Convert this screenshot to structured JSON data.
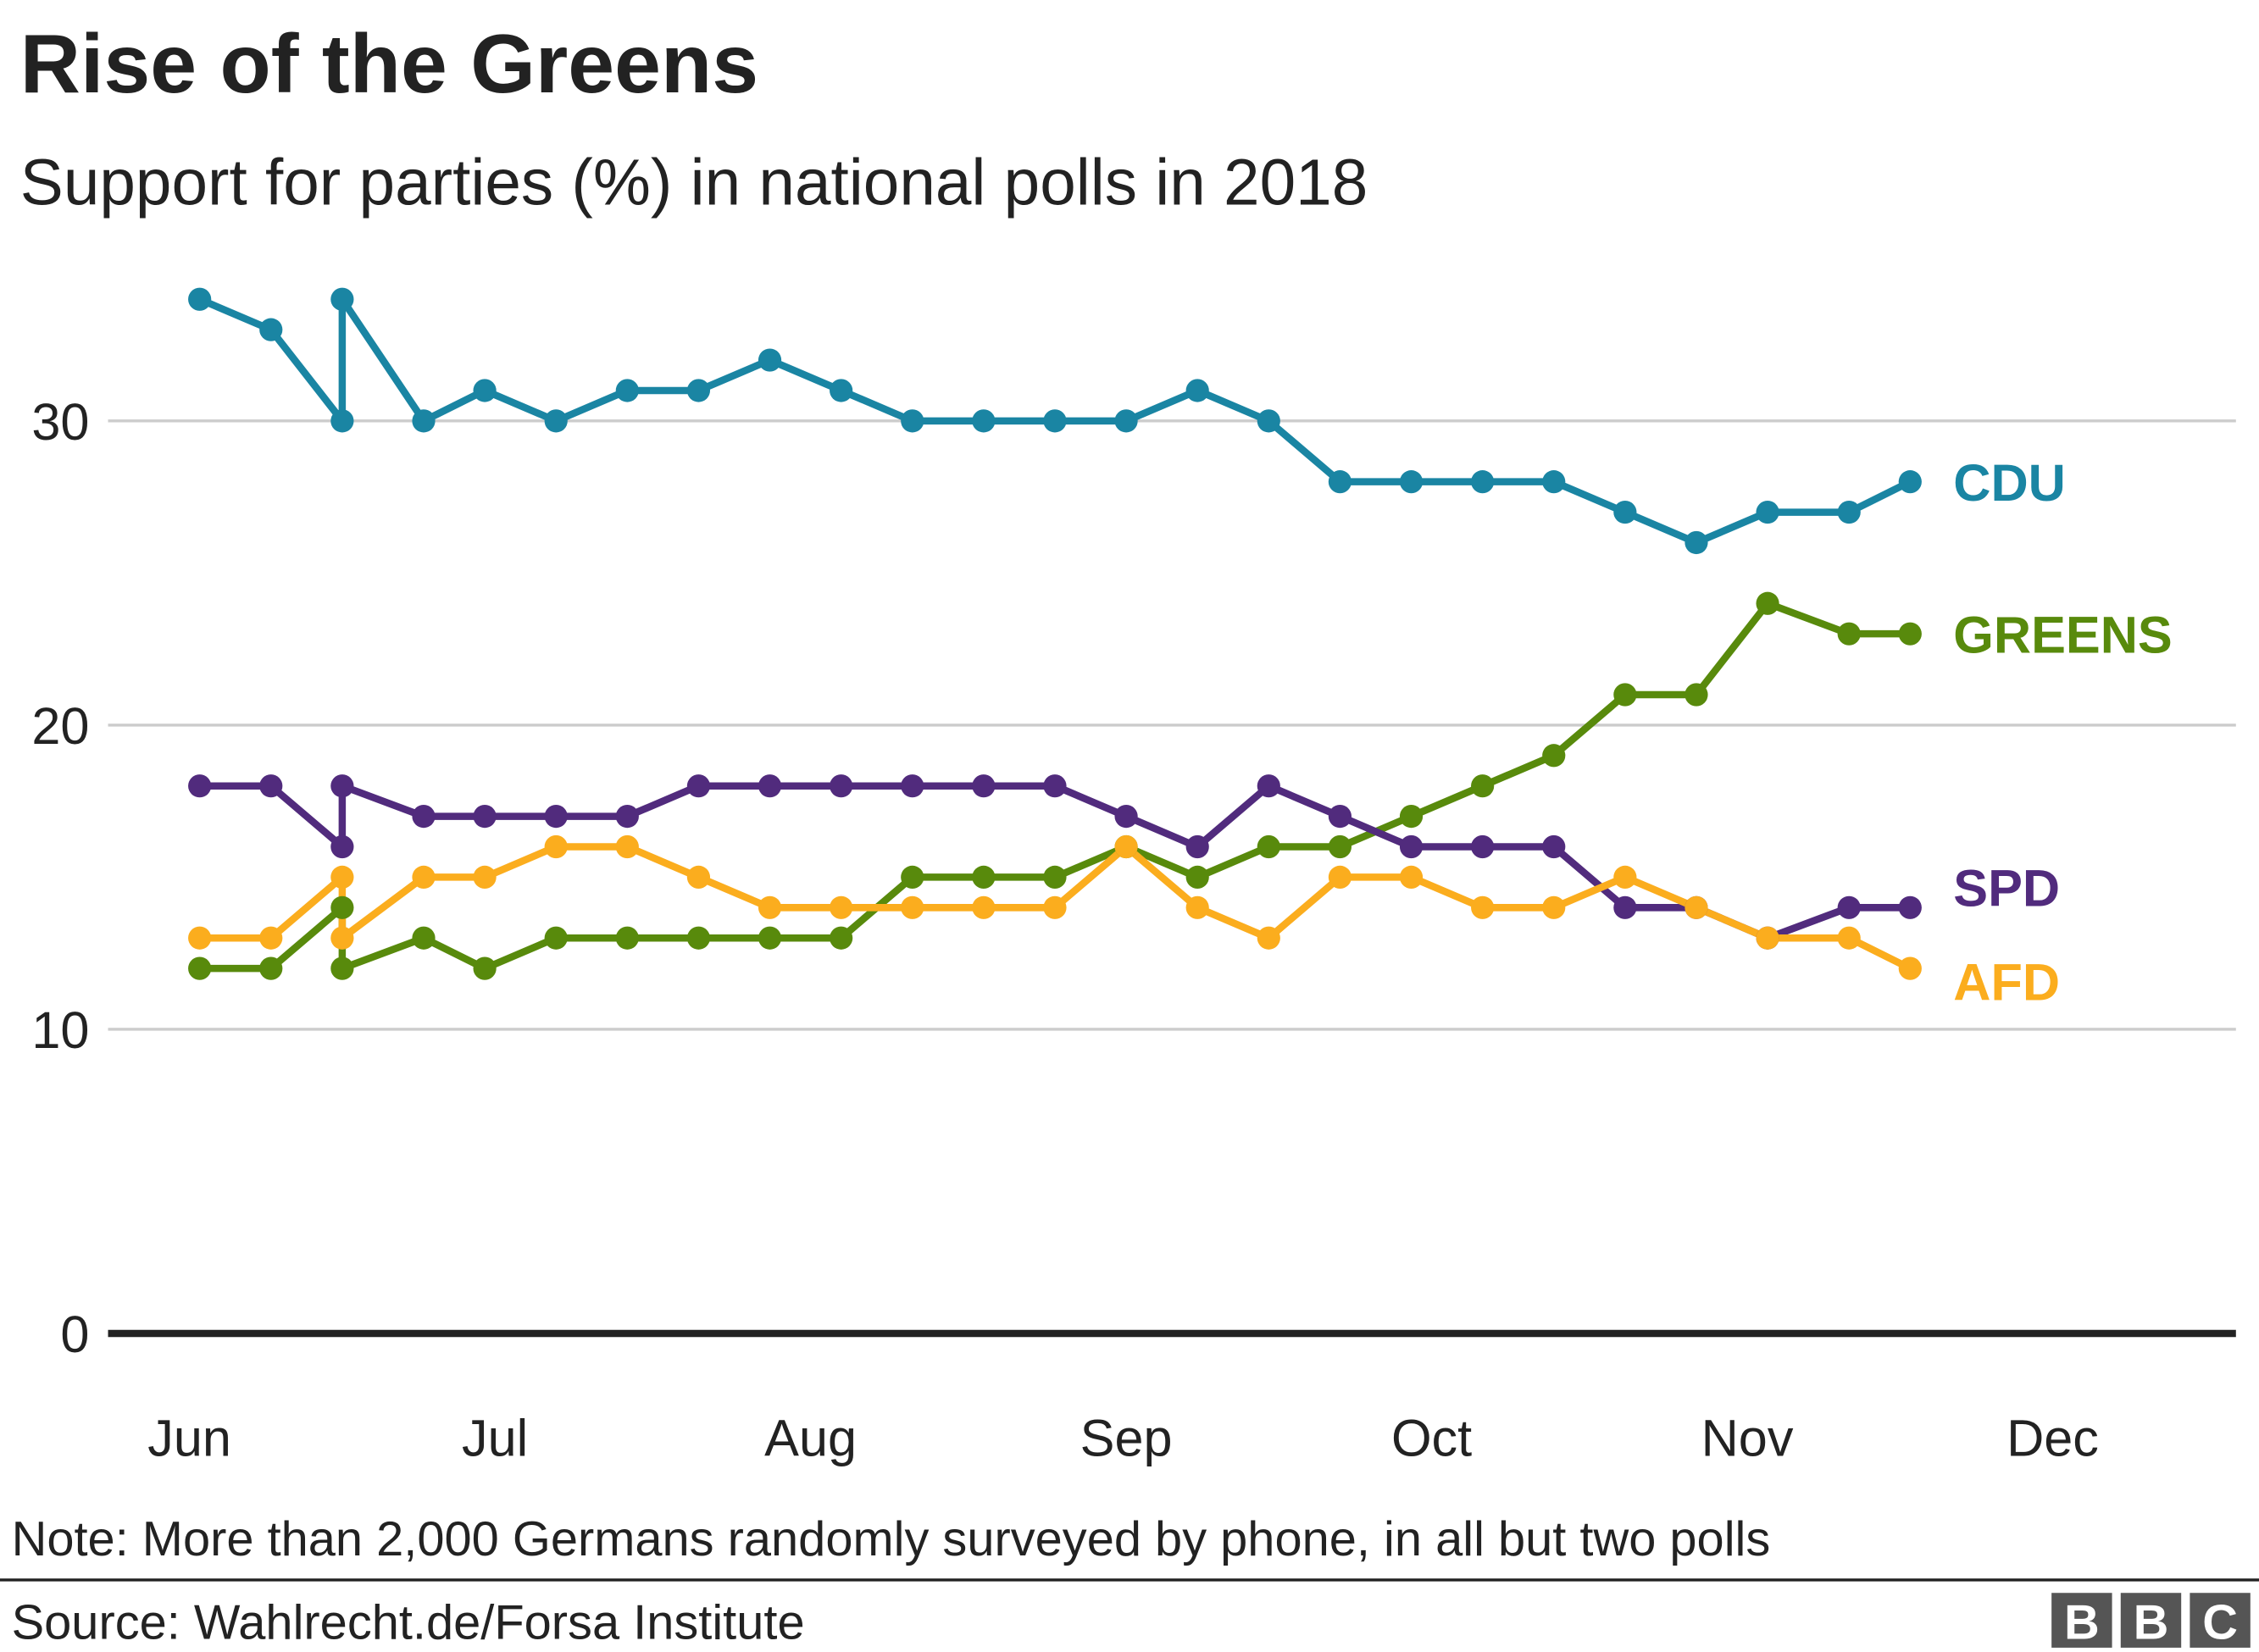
{
  "chart_data": {
    "type": "line",
    "title": "Rise of the Greens",
    "subtitle": "Support for parties (%) in national polls in 2018",
    "x": [
      1,
      8,
      15,
      15,
      23,
      29,
      36,
      43,
      50,
      57,
      64,
      71,
      78,
      85,
      92,
      99,
      106,
      113,
      120,
      127,
      134,
      141,
      148,
      155,
      163,
      169
    ],
    "xlim": [
      -8,
      201
    ],
    "xticks": [
      {
        "value": 0,
        "label": "Jun"
      },
      {
        "value": 30,
        "label": "Jul"
      },
      {
        "value": 61,
        "label": "Aug"
      },
      {
        "value": 92,
        "label": "Sep"
      },
      {
        "value": 122,
        "label": "Oct"
      },
      {
        "value": 153,
        "label": "Nov"
      },
      {
        "value": 183,
        "label": "Dec"
      }
    ],
    "ylim": [
      0,
      35
    ],
    "yticks": [
      0,
      10,
      20,
      30
    ],
    "grid": true,
    "series": [
      {
        "name": "CDU",
        "color": "#1a85a3",
        "values": [
          34,
          33,
          30,
          34,
          30,
          31,
          30,
          31,
          31,
          32,
          31,
          30,
          30,
          30,
          30,
          31,
          30,
          28,
          28,
          28,
          28,
          27,
          26,
          27,
          27,
          28
        ]
      },
      {
        "name": "GREENS",
        "color": "#588a0c",
        "values": [
          12,
          12,
          14,
          12,
          13,
          12,
          13,
          13,
          13,
          13,
          13,
          15,
          15,
          15,
          16,
          15,
          16,
          16,
          17,
          18,
          19,
          21,
          21,
          24,
          23,
          23
        ]
      },
      {
        "name": "SPD",
        "color": "#512b7d",
        "values": [
          18,
          18,
          16,
          18,
          17,
          17,
          17,
          17,
          18,
          18,
          18,
          18,
          18,
          18,
          17,
          16,
          18,
          17,
          16,
          16,
          16,
          14,
          14,
          13,
          14,
          14
        ]
      },
      {
        "name": "AFD",
        "color": "#fbad1e",
        "values": [
          13,
          13,
          15,
          13,
          15,
          15,
          16,
          16,
          15,
          14,
          14,
          14,
          14,
          14,
          16,
          14,
          13,
          15,
          15,
          14,
          14,
          15,
          14,
          13,
          13,
          12
        ]
      }
    ]
  },
  "footer": {
    "note": "Note: More than 2,000 Germans randomly surveyed by phone, in all but two polls",
    "source": "Source: Wahlrecht.de/Forsa Institute",
    "logo": [
      "B",
      "B",
      "C"
    ]
  }
}
